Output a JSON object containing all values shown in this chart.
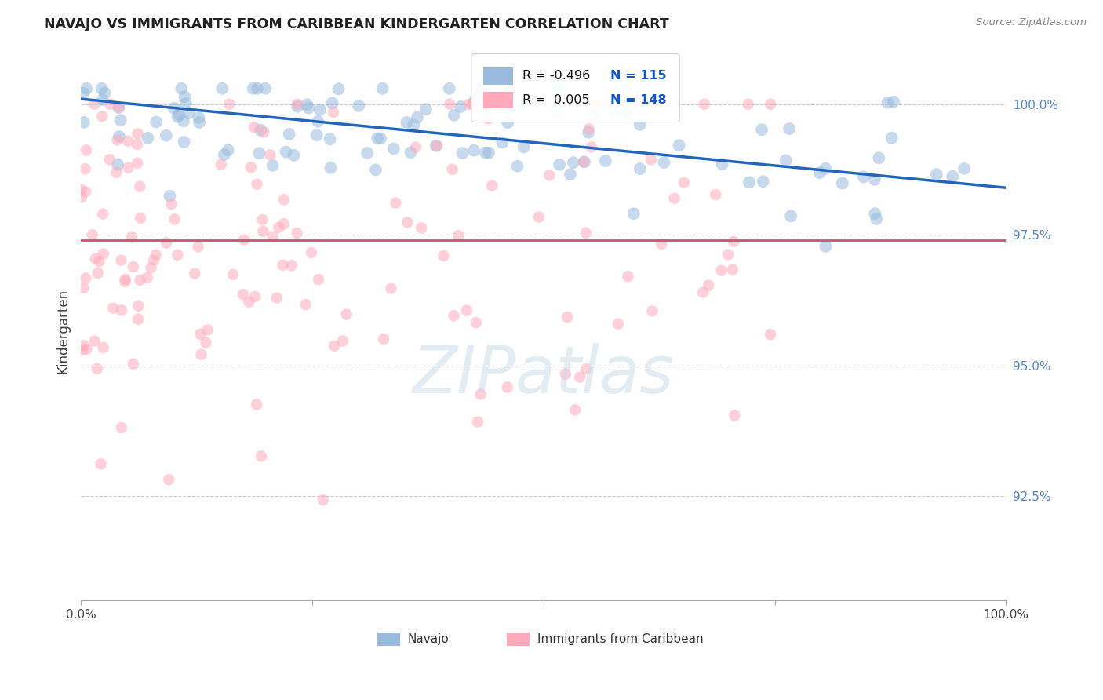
{
  "title": "NAVAJO VS IMMIGRANTS FROM CARIBBEAN KINDERGARTEN CORRELATION CHART",
  "source": "Source: ZipAtlas.com",
  "ylabel": "Kindergarten",
  "legend_label_blue": "Navajo",
  "legend_label_pink": "Immigrants from Caribbean",
  "watermark": "ZIPatlas",
  "blue_R": "-0.496",
  "blue_N": "115",
  "pink_R": "0.005",
  "pink_N": "148",
  "blue_color": "#99BBDD",
  "pink_color": "#FFAABB",
  "trendline_blue": "#2266BB",
  "trendline_pink": "#CC5577",
  "ytick_labels": [
    "92.5%",
    "95.0%",
    "97.5%",
    "100.0%"
  ],
  "ytick_values": [
    0.925,
    0.95,
    0.975,
    1.0
  ],
  "ylim": [
    0.905,
    1.008
  ],
  "xlim": [
    0.0,
    1.0
  ],
  "dot_size_blue": 130,
  "dot_size_pink": 110,
  "dot_alpha": 0.55,
  "grid_color": "#CCCCCC",
  "grid_style": "--",
  "background_color": "#FFFFFF",
  "ytick_color": "#5588CC",
  "blue_trend_y0": 1.001,
  "blue_trend_y1": 0.984,
  "pink_trend_y": 0.974
}
